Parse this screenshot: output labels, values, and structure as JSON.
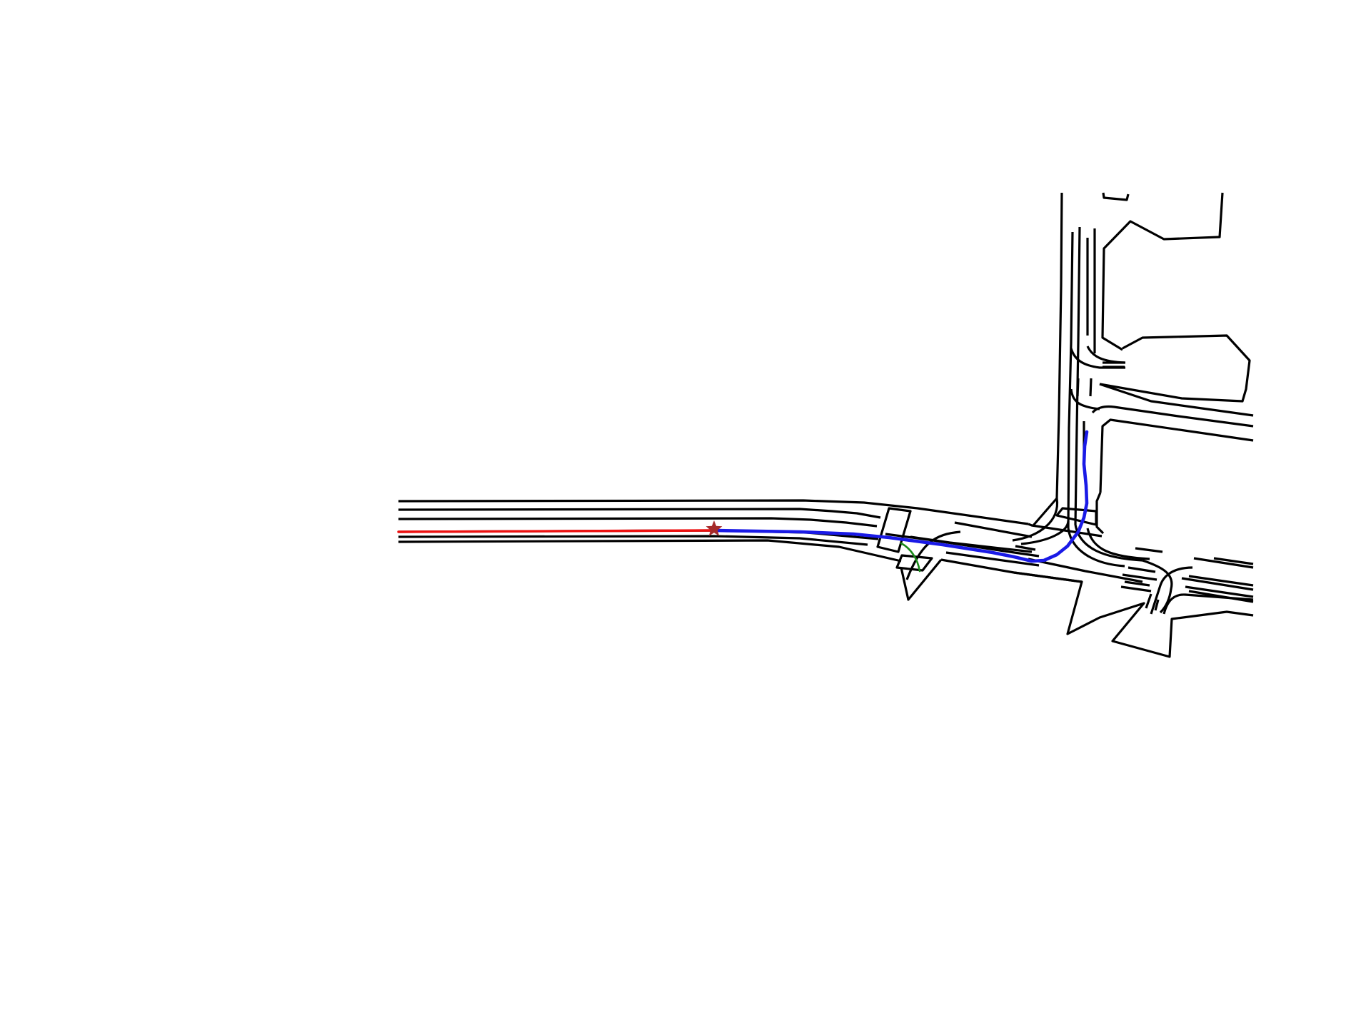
{
  "colors": {
    "background": "#ffffff",
    "road_boundary": "#000000",
    "lane_marking": "#000000",
    "history_trajectory": "#ee1111",
    "planned_trajectory": "#1a1ae6",
    "alternative_trajectory": "#1a8a1a",
    "ego_marker": "#a52a2a"
  },
  "icons": {
    "ego_marker": "star-icon"
  }
}
